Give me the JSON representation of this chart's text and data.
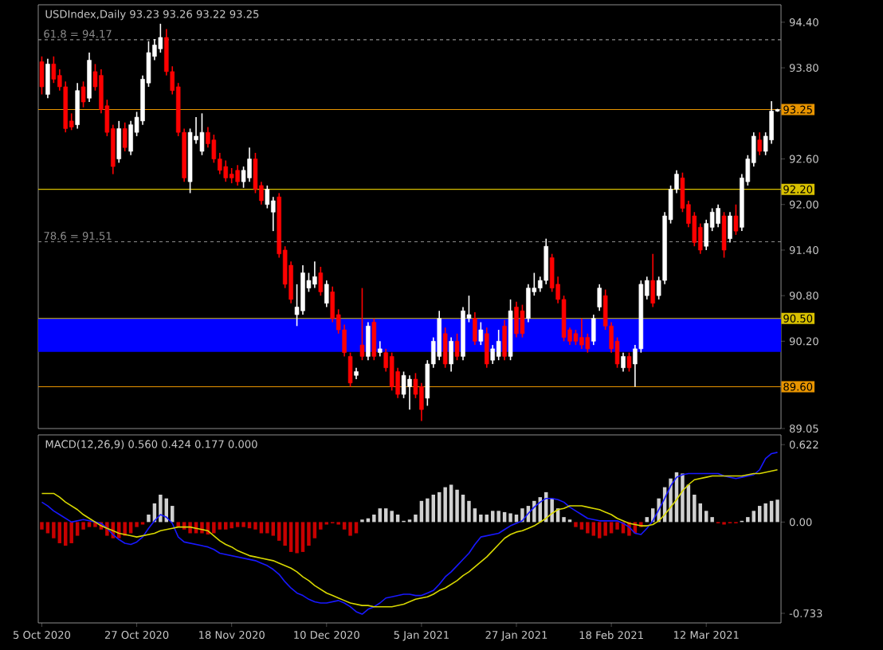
{
  "chart_data": [
    {
      "type": "candlestick",
      "title": "USDIndex,Daily 93.23 93.26 93.22 93.25",
      "categories": [
        null,
        null,
        null,
        null,
        null,
        null,
        null,
        null,
        null,
        null,
        null,
        null,
        null,
        null,
        null,
        null,
        null,
        null,
        null,
        null,
        null,
        null,
        null,
        null,
        null,
        null,
        null,
        null,
        null,
        null,
        null,
        null,
        null,
        null,
        null,
        null,
        null,
        null,
        null,
        null,
        null,
        null,
        null,
        null,
        null,
        null,
        null,
        null,
        null,
        null,
        null,
        null,
        null,
        null,
        null,
        null,
        null,
        null,
        null,
        null,
        null,
        null,
        null,
        null,
        null,
        null,
        null,
        null,
        null,
        null,
        null,
        null,
        null,
        null,
        null,
        null,
        null,
        null,
        null,
        null,
        null,
        null,
        null,
        null,
        null,
        null,
        null,
        null,
        null,
        null,
        null,
        null,
        null,
        null,
        null,
        null,
        null,
        null,
        null,
        null,
        null,
        null,
        null,
        null,
        null,
        null,
        null,
        null,
        null,
        null,
        null,
        null,
        null,
        null,
        null,
        null,
        null,
        null,
        null,
        null,
        null,
        null,
        null,
        null,
        null
      ],
      "ohlc": [
        [
          93.88,
          93.95,
          93.45,
          93.55
        ],
        [
          93.45,
          93.92,
          93.4,
          93.85
        ],
        [
          93.85,
          93.95,
          93.6,
          93.65
        ],
        [
          93.7,
          93.78,
          93.5,
          93.55
        ],
        [
          93.55,
          93.62,
          92.95,
          93.0
        ],
        [
          93.1,
          93.2,
          92.98,
          93.02
        ],
        [
          93.05,
          93.6,
          93.0,
          93.5
        ],
        [
          93.55,
          93.62,
          93.28,
          93.35
        ],
        [
          93.4,
          94.0,
          93.35,
          93.9
        ],
        [
          93.75,
          93.85,
          93.5,
          93.55
        ],
        [
          93.7,
          93.78,
          93.2,
          93.25
        ],
        [
          93.3,
          93.38,
          92.9,
          92.95
        ],
        [
          93.0,
          93.05,
          92.4,
          92.5
        ],
        [
          92.6,
          93.1,
          92.55,
          93.0
        ],
        [
          93.0,
          93.08,
          92.7,
          92.75
        ],
        [
          92.7,
          93.1,
          92.65,
          93.05
        ],
        [
          92.95,
          93.22,
          92.9,
          93.15
        ],
        [
          93.1,
          93.7,
          93.05,
          93.65
        ],
        [
          93.6,
          94.15,
          93.55,
          94.0
        ],
        [
          93.95,
          94.18,
          93.9,
          94.1
        ],
        [
          94.05,
          94.38,
          94.0,
          94.2
        ],
        [
          94.2,
          94.31,
          93.7,
          93.75
        ],
        [
          93.75,
          93.82,
          93.45,
          93.5
        ],
        [
          93.55,
          93.6,
          92.9,
          92.95
        ],
        [
          92.95,
          93.0,
          92.3,
          92.35
        ],
        [
          92.3,
          93.0,
          92.15,
          92.95
        ],
        [
          92.85,
          93.15,
          92.8,
          92.9
        ],
        [
          92.7,
          93.2,
          92.65,
          92.95
        ],
        [
          92.95,
          93.02,
          92.75,
          92.8
        ],
        [
          92.85,
          92.92,
          92.55,
          92.6
        ],
        [
          92.6,
          92.68,
          92.4,
          92.45
        ],
        [
          92.5,
          92.58,
          92.3,
          92.35
        ],
        [
          92.4,
          92.48,
          92.28,
          92.35
        ],
        [
          92.45,
          92.52,
          92.25,
          92.3
        ],
        [
          92.3,
          92.5,
          92.22,
          92.45
        ],
        [
          92.35,
          92.75,
          92.3,
          92.6
        ],
        [
          92.6,
          92.68,
          92.15,
          92.2
        ],
        [
          92.25,
          92.3,
          92.0,
          92.05
        ],
        [
          92.0,
          92.25,
          91.95,
          92.2
        ],
        [
          91.9,
          92.1,
          91.65,
          92.05
        ],
        [
          92.1,
          92.15,
          91.3,
          91.35
        ],
        [
          91.4,
          91.45,
          90.9,
          90.95
        ],
        [
          91.2,
          91.25,
          90.7,
          90.75
        ],
        [
          90.55,
          90.95,
          90.4,
          90.65
        ],
        [
          90.6,
          91.2,
          90.55,
          91.1
        ],
        [
          90.9,
          91.1,
          90.85,
          91.0
        ],
        [
          90.95,
          91.25,
          90.9,
          91.05
        ],
        [
          91.1,
          91.18,
          90.8,
          90.85
        ],
        [
          90.7,
          91.0,
          90.65,
          90.95
        ],
        [
          90.85,
          90.92,
          90.45,
          90.5
        ],
        [
          90.55,
          90.62,
          90.3,
          90.35
        ],
        [
          90.35,
          90.42,
          90.0,
          90.05
        ],
        [
          90.0,
          90.05,
          89.6,
          89.65
        ],
        [
          89.75,
          89.85,
          89.7,
          89.8
        ],
        [
          90.15,
          90.9,
          89.95,
          90.0
        ],
        [
          90.0,
          90.45,
          89.95,
          90.4
        ],
        [
          90.45,
          90.5,
          89.95,
          90.0
        ],
        [
          90.05,
          90.2,
          90.0,
          90.1
        ],
        [
          90.05,
          90.1,
          89.8,
          89.85
        ],
        [
          90.0,
          90.05,
          89.55,
          89.6
        ],
        [
          89.8,
          89.85,
          89.45,
          89.5
        ],
        [
          89.5,
          89.8,
          89.45,
          89.75
        ],
        [
          89.6,
          89.75,
          89.3,
          89.7
        ],
        [
          89.7,
          89.78,
          89.45,
          89.5
        ],
        [
          89.6,
          89.65,
          89.15,
          89.3
        ],
        [
          89.45,
          89.95,
          89.35,
          89.9
        ],
        [
          89.9,
          90.25,
          89.85,
          90.2
        ],
        [
          90.0,
          90.6,
          89.95,
          90.5
        ],
        [
          90.3,
          90.38,
          89.85,
          89.9
        ],
        [
          89.9,
          90.25,
          89.8,
          90.2
        ],
        [
          90.2,
          90.3,
          89.95,
          90.0
        ],
        [
          90.0,
          90.65,
          89.95,
          90.6
        ],
        [
          90.5,
          90.8,
          90.45,
          90.55
        ],
        [
          90.5,
          90.58,
          90.15,
          90.2
        ],
        [
          90.2,
          90.45,
          90.15,
          90.35
        ],
        [
          90.3,
          90.38,
          89.85,
          89.9
        ],
        [
          89.95,
          90.15,
          89.9,
          90.1
        ],
        [
          90.0,
          90.35,
          89.95,
          90.2
        ],
        [
          90.4,
          90.48,
          89.95,
          90.0
        ],
        [
          90.0,
          90.75,
          89.95,
          90.6
        ],
        [
          90.65,
          90.72,
          90.25,
          90.3
        ],
        [
          90.6,
          90.68,
          90.25,
          90.3
        ],
        [
          90.5,
          90.95,
          90.45,
          90.9
        ],
        [
          90.85,
          91.1,
          90.8,
          90.9
        ],
        [
          90.9,
          91.05,
          90.85,
          91.0
        ],
        [
          91.0,
          91.55,
          90.95,
          91.45
        ],
        [
          91.3,
          91.35,
          90.85,
          90.9
        ],
        [
          90.95,
          91.05,
          90.7,
          90.75
        ],
        [
          90.75,
          90.8,
          90.2,
          90.25
        ],
        [
          90.35,
          90.38,
          90.15,
          90.2
        ],
        [
          90.3,
          90.35,
          90.15,
          90.2
        ],
        [
          90.25,
          90.5,
          90.1,
          90.15
        ],
        [
          90.25,
          90.3,
          90.05,
          90.1
        ],
        [
          90.2,
          90.55,
          90.15,
          90.5
        ],
        [
          90.65,
          90.95,
          90.6,
          90.9
        ],
        [
          90.8,
          90.88,
          90.35,
          90.4
        ],
        [
          90.4,
          90.45,
          90.05,
          90.1
        ],
        [
          90.2,
          90.25,
          89.85,
          89.9
        ],
        [
          89.85,
          90.05,
          89.8,
          90.0
        ],
        [
          90.0,
          90.05,
          89.8,
          89.85
        ],
        [
          89.9,
          90.15,
          89.6,
          90.1
        ],
        [
          90.1,
          91.0,
          90.05,
          90.95
        ],
        [
          90.8,
          91.05,
          90.75,
          91.0
        ],
        [
          91.0,
          91.35,
          90.65,
          90.7
        ],
        [
          90.8,
          91.05,
          90.75,
          91.0
        ],
        [
          91.0,
          91.9,
          90.95,
          91.85
        ],
        [
          91.8,
          92.25,
          91.75,
          92.2
        ],
        [
          92.2,
          92.45,
          92.15,
          92.4
        ],
        [
          92.35,
          92.42,
          91.9,
          91.95
        ],
        [
          92.0,
          92.05,
          91.7,
          91.75
        ],
        [
          91.85,
          91.9,
          91.45,
          91.5
        ],
        [
          91.7,
          91.75,
          91.35,
          91.4
        ],
        [
          91.45,
          91.8,
          91.4,
          91.75
        ],
        [
          91.7,
          91.95,
          91.65,
          91.9
        ],
        [
          91.75,
          92.0,
          91.7,
          91.95
        ],
        [
          91.85,
          91.9,
          91.3,
          91.4
        ],
        [
          91.55,
          91.9,
          91.5,
          91.85
        ],
        [
          91.85,
          92.0,
          91.6,
          91.65
        ],
        [
          91.7,
          92.4,
          91.65,
          92.35
        ],
        [
          92.3,
          92.65,
          92.25,
          92.6
        ],
        [
          92.55,
          92.95,
          92.5,
          92.9
        ],
        [
          92.85,
          92.95,
          92.65,
          92.7
        ],
        [
          92.7,
          92.95,
          92.65,
          92.9
        ],
        [
          92.85,
          93.36,
          92.8,
          93.23
        ],
        [
          93.23,
          93.26,
          93.22,
          93.25
        ]
      ],
      "colors": [
        "#ff0000",
        "#ffffff",
        "#ff0000",
        "#ff0000",
        "#ff0000",
        "#ff0000",
        "#ffffff",
        "#ff0000",
        "#ffffff",
        "#ff0000",
        "#ff0000",
        "#ff0000",
        "#ff0000",
        "#ffffff",
        "#ff0000",
        "#ffffff",
        "#ffffff",
        "#ffffff",
        "#ffffff",
        "#ffffff",
        "#ffffff",
        "#ff0000",
        "#ff0000",
        "#ff0000",
        "#ff0000",
        "#ffffff",
        "#ffffff",
        "#ffffff",
        "#ff0000",
        "#ff0000",
        "#ff0000",
        "#ff0000",
        "#ff0000",
        "#ff0000",
        "#ffffff",
        "#ffffff",
        "#ff0000",
        "#ff0000",
        "#ffffff",
        "#ffffff",
        "#ff0000",
        "#ff0000",
        "#ff0000",
        "#ffffff",
        "#ffffff",
        "#ffffff",
        "#ffffff",
        "#ff0000",
        "#ffffff",
        "#ff0000",
        "#ff0000",
        "#ff0000",
        "#ff0000",
        "#ffffff",
        "#ff0000",
        "#ffffff",
        "#ff0000",
        "#ffffff",
        "#ff0000",
        "#ff0000",
        "#ff0000",
        "#ffffff",
        "#ffffff",
        "#ff0000",
        "#ff0000",
        "#ffffff",
        "#ffffff",
        "#ffffff",
        "#ff0000",
        "#ffffff",
        "#ff0000",
        "#ffffff",
        "#ffffff",
        "#ff0000",
        "#ffffff",
        "#ff0000",
        "#ffffff",
        "#ffffff",
        "#ff0000",
        "#ffffff",
        "#ff0000",
        "#ff0000",
        "#ffffff",
        "#ffffff",
        "#ffffff",
        "#ffffff",
        "#ff0000",
        "#ff0000",
        "#ff0000",
        "#ff0000",
        "#ff0000",
        "#ff0000",
        "#ff0000",
        "#ffffff",
        "#ffffff",
        "#ff0000",
        "#ff0000",
        "#ff0000",
        "#ffffff",
        "#ff0000",
        "#ffffff",
        "#ffffff",
        "#ffffff",
        "#ff0000",
        "#ffffff",
        "#ffffff",
        "#ffffff",
        "#ffffff",
        "#ff0000",
        "#ff0000",
        "#ff0000",
        "#ff0000",
        "#ffffff",
        "#ffffff",
        "#ffffff",
        "#ff0000",
        "#ffffff",
        "#ff0000",
        "#ffffff",
        "#ffffff",
        "#ffffff",
        "#ff0000",
        "#ffffff",
        "#ffffff",
        "#ffffff"
      ],
      "ylim": [
        89.05,
        94.63
      ],
      "yticks": [
        {
          "value": 94.4,
          "label": "94.40"
        },
        {
          "value": 93.8,
          "label": "93.80"
        },
        {
          "value": 92.6,
          "label": "92.60"
        },
        {
          "value": 92.0,
          "label": "92.00"
        },
        {
          "value": 91.4,
          "label": "91.40"
        },
        {
          "value": 90.8,
          "label": "90.80"
        },
        {
          "value": 90.2,
          "label": "90.20"
        },
        89.05
      ],
      "bands": [
        {
          "axis": "y",
          "from": 90.06,
          "to": 90.5,
          "color": "#0000ff"
        }
      ],
      "ref_lines": [
        {
          "axis": "y",
          "value": 94.17,
          "label": "61.8 = 94.17",
          "color": "#8c8c8c",
          "line_style": "dashed"
        },
        {
          "axis": "y",
          "value": 93.25,
          "label": "93.25",
          "color": "#e89400"
        },
        {
          "axis": "y",
          "value": 92.2,
          "label": "92.20",
          "color": "#d8c000"
        },
        {
          "axis": "y",
          "value": 91.51,
          "label": "78.6 = 91.51",
          "color": "#8c8c8c",
          "line_style": "dashed"
        },
        {
          "axis": "y",
          "value": 90.5,
          "label": "90.50",
          "color": "#d8c000"
        },
        {
          "axis": "y",
          "value": 89.6,
          "label": "89.60",
          "color": "#e89400"
        }
      ]
    },
    {
      "type": "bar",
      "title": "MACD(12,26,9) 0.560 0.424 0.177 0.000",
      "categories": [
        "5 Oct 2020",
        null,
        null,
        null,
        null,
        null,
        null,
        null,
        null,
        null,
        null,
        null,
        null,
        null,
        null,
        null,
        "27 Oct 2020",
        null,
        null,
        null,
        null,
        null,
        null,
        null,
        null,
        null,
        null,
        null,
        null,
        null,
        null,
        null,
        "18 Nov 2020",
        null,
        null,
        null,
        null,
        null,
        null,
        null,
        null,
        null,
        null,
        null,
        null,
        null,
        null,
        null,
        "10 Dec 2020",
        null,
        null,
        null,
        null,
        null,
        null,
        null,
        null,
        null,
        null,
        null,
        null,
        null,
        null,
        null,
        "5 Jan 2021",
        null,
        null,
        null,
        null,
        null,
        null,
        null,
        null,
        null,
        null,
        null,
        null,
        null,
        null,
        null,
        "27 Jan 2021",
        null,
        null,
        null,
        null,
        null,
        null,
        null,
        null,
        null,
        null,
        null,
        null,
        null,
        null,
        null,
        "18 Feb 2021",
        null,
        null,
        null,
        null,
        null,
        null,
        null,
        null,
        null,
        null,
        null,
        null,
        null,
        null,
        null,
        "12 Mar 2021",
        null,
        null,
        null,
        null,
        null,
        null,
        null,
        null,
        null,
        null,
        null,
        null
      ],
      "ylim": [
        -0.81,
        0.7
      ],
      "yticks": [
        {
          "value": 0.622,
          "label": "0.622"
        },
        {
          "value": 0,
          "label": "0.00"
        },
        {
          "value": -0.733,
          "label": "-0.733"
        }
      ],
      "series": [
        {
          "type": "bar",
          "values": [
            -0.06,
            -0.09,
            -0.13,
            -0.17,
            -0.19,
            -0.17,
            -0.11,
            -0.06,
            -0.04,
            -0.04,
            -0.06,
            -0.11,
            -0.13,
            -0.13,
            -0.11,
            -0.09,
            -0.04,
            -0.02,
            0.06,
            0.15,
            0.22,
            0.19,
            0.13,
            -0.04,
            -0.06,
            -0.09,
            -0.09,
            -0.09,
            -0.1,
            -0.09,
            -0.06,
            -0.06,
            -0.05,
            -0.04,
            -0.04,
            -0.05,
            -0.06,
            -0.09,
            -0.09,
            -0.11,
            -0.15,
            -0.19,
            -0.24,
            -0.25,
            -0.24,
            -0.19,
            -0.13,
            -0.06,
            -0.02,
            -0.01,
            -0.02,
            -0.06,
            -0.11,
            -0.09,
            0.02,
            0.03,
            0.06,
            0.11,
            0.11,
            0.09,
            0.06,
            0.01,
            0.02,
            0.06,
            0.17,
            0.19,
            0.22,
            0.24,
            0.28,
            0.3,
            0.26,
            0.22,
            0.17,
            0.11,
            0.06,
            0.06,
            0.09,
            0.09,
            0.08,
            0.07,
            0.06,
            0.11,
            0.13,
            0.17,
            0.2,
            0.24,
            0.19,
            0.11,
            0.04,
            0.02,
            -0.04,
            -0.06,
            -0.09,
            -0.11,
            -0.13,
            -0.11,
            -0.09,
            -0.06,
            -0.09,
            -0.11,
            -0.09,
            -0.04,
            0.04,
            0.11,
            0.19,
            0.28,
            0.35,
            0.4,
            0.39,
            0.3,
            0.22,
            0.15,
            0.09,
            0.04,
            -0.01,
            -0.02,
            -0.01,
            -0.01,
            0.01,
            0.04,
            0.09,
            0.13,
            0.15,
            0.17,
            0.18
          ],
          "colors": [
            "#c80000",
            "#c80000",
            "#c80000",
            "#c80000",
            "#c80000",
            "#c80000",
            "#c80000",
            "#c80000",
            "#c80000",
            "#c80000",
            "#c80000",
            "#c80000",
            "#c80000",
            "#c80000",
            "#c80000",
            "#c80000",
            "#c80000",
            "#c80000",
            "#d0d0d0",
            "#d0d0d0",
            "#d0d0d0",
            "#d0d0d0",
            "#d0d0d0",
            "#c80000",
            "#c80000",
            "#c80000",
            "#c80000",
            "#c80000",
            "#c80000",
            "#c80000",
            "#c80000",
            "#c80000",
            "#c80000",
            "#c80000",
            "#c80000",
            "#c80000",
            "#c80000",
            "#c80000",
            "#c80000",
            "#c80000",
            "#c80000",
            "#c80000",
            "#c80000",
            "#c80000",
            "#c80000",
            "#c80000",
            "#c80000",
            "#c80000",
            "#c80000",
            "#c80000",
            "#c80000",
            "#c80000",
            "#c80000",
            "#c80000",
            "#d0d0d0",
            "#d0d0d0",
            "#d0d0d0",
            "#d0d0d0",
            "#d0d0d0",
            "#d0d0d0",
            "#d0d0d0",
            "#d0d0d0",
            "#d0d0d0",
            "#d0d0d0",
            "#d0d0d0",
            "#d0d0d0",
            "#d0d0d0",
            "#d0d0d0",
            "#d0d0d0",
            "#d0d0d0",
            "#d0d0d0",
            "#d0d0d0",
            "#d0d0d0",
            "#d0d0d0",
            "#d0d0d0",
            "#d0d0d0",
            "#d0d0d0",
            "#d0d0d0",
            "#d0d0d0",
            "#d0d0d0",
            "#d0d0d0",
            "#d0d0d0",
            "#d0d0d0",
            "#d0d0d0",
            "#d0d0d0",
            "#d0d0d0",
            "#d0d0d0",
            "#d0d0d0",
            "#d0d0d0",
            "#d0d0d0",
            "#c80000",
            "#c80000",
            "#c80000",
            "#c80000",
            "#c80000",
            "#c80000",
            "#c80000",
            "#c80000",
            "#c80000",
            "#c80000",
            "#c80000",
            "#c80000",
            "#d0d0d0",
            "#d0d0d0",
            "#d0d0d0",
            "#d0d0d0",
            "#d0d0d0",
            "#d0d0d0",
            "#d0d0d0",
            "#d0d0d0",
            "#d0d0d0",
            "#d0d0d0",
            "#d0d0d0",
            "#d0d0d0",
            "#c80000",
            "#c80000",
            "#c80000",
            "#c80000",
            "#d0d0d0",
            "#d0d0d0",
            "#d0d0d0",
            "#d0d0d0",
            "#d0d0d0",
            "#d0d0d0",
            "#d0d0d0"
          ]
        },
        {
          "type": "line",
          "color": "#1818ff",
          "values": [
            0.16,
            0.13,
            0.09,
            0.06,
            0.03,
            0.0,
            0.01,
            0.02,
            0.01,
            0.0,
            -0.01,
            -0.05,
            -0.1,
            -0.14,
            -0.17,
            -0.18,
            -0.16,
            -0.12,
            -0.05,
            0.01,
            0.06,
            0.04,
            -0.01,
            -0.12,
            -0.16,
            -0.17,
            -0.18,
            -0.19,
            -0.2,
            -0.22,
            -0.25,
            -0.26,
            -0.27,
            -0.28,
            -0.29,
            -0.3,
            -0.31,
            -0.33,
            -0.35,
            -0.38,
            -0.42,
            -0.48,
            -0.53,
            -0.57,
            -0.59,
            -0.62,
            -0.64,
            -0.65,
            -0.65,
            -0.64,
            -0.63,
            -0.65,
            -0.68,
            -0.72,
            -0.74,
            -0.7,
            -0.68,
            -0.65,
            -0.61,
            -0.6,
            -0.59,
            -0.58,
            -0.58,
            -0.59,
            -0.59,
            -0.57,
            -0.55,
            -0.5,
            -0.44,
            -0.4,
            -0.35,
            -0.3,
            -0.25,
            -0.18,
            -0.12,
            -0.11,
            -0.1,
            -0.09,
            -0.06,
            -0.03,
            -0.01,
            0.01,
            0.07,
            0.12,
            0.16,
            0.19,
            0.19,
            0.18,
            0.16,
            0.12,
            0.09,
            0.06,
            0.03,
            0.02,
            0.01,
            0.01,
            0.01,
            0.01,
            -0.01,
            -0.04,
            -0.09,
            -0.1,
            -0.05,
            0.01,
            0.1,
            0.19,
            0.29,
            0.36,
            0.38,
            0.39,
            0.39,
            0.39,
            0.39,
            0.39,
            0.39,
            0.37,
            0.36,
            0.35,
            0.36,
            0.37,
            0.38,
            0.42,
            0.51,
            0.55,
            0.56
          ]
        },
        {
          "type": "line",
          "color": "#d8d800",
          "values": [
            0.23,
            0.23,
            0.23,
            0.2,
            0.16,
            0.13,
            0.1,
            0.06,
            0.03,
            0.0,
            -0.03,
            -0.05,
            -0.07,
            -0.09,
            -0.1,
            -0.11,
            -0.12,
            -0.11,
            -0.1,
            -0.09,
            -0.07,
            -0.06,
            -0.05,
            -0.04,
            -0.04,
            -0.04,
            -0.05,
            -0.06,
            -0.07,
            -0.11,
            -0.15,
            -0.18,
            -0.2,
            -0.23,
            -0.25,
            -0.27,
            -0.28,
            -0.29,
            -0.3,
            -0.31,
            -0.33,
            -0.35,
            -0.37,
            -0.4,
            -0.44,
            -0.47,
            -0.51,
            -0.54,
            -0.57,
            -0.59,
            -0.61,
            -0.63,
            -0.65,
            -0.66,
            -0.67,
            -0.67,
            -0.68,
            -0.68,
            -0.68,
            -0.68,
            -0.67,
            -0.66,
            -0.64,
            -0.62,
            -0.61,
            -0.6,
            -0.58,
            -0.55,
            -0.53,
            -0.5,
            -0.47,
            -0.43,
            -0.4,
            -0.36,
            -0.32,
            -0.28,
            -0.23,
            -0.18,
            -0.13,
            -0.1,
            -0.08,
            -0.07,
            -0.05,
            -0.03,
            0.0,
            0.03,
            0.07,
            0.1,
            0.11,
            0.13,
            0.13,
            0.13,
            0.12,
            0.11,
            0.1,
            0.08,
            0.06,
            0.03,
            0.01,
            -0.01,
            -0.02,
            -0.03,
            -0.03,
            -0.02,
            0.01,
            0.06,
            0.12,
            0.18,
            0.25,
            0.3,
            0.34,
            0.35,
            0.36,
            0.37,
            0.37,
            0.37,
            0.37,
            0.37,
            0.37,
            0.38,
            0.39,
            0.39,
            0.4,
            0.41,
            0.42
          ]
        }
      ]
    }
  ]
}
